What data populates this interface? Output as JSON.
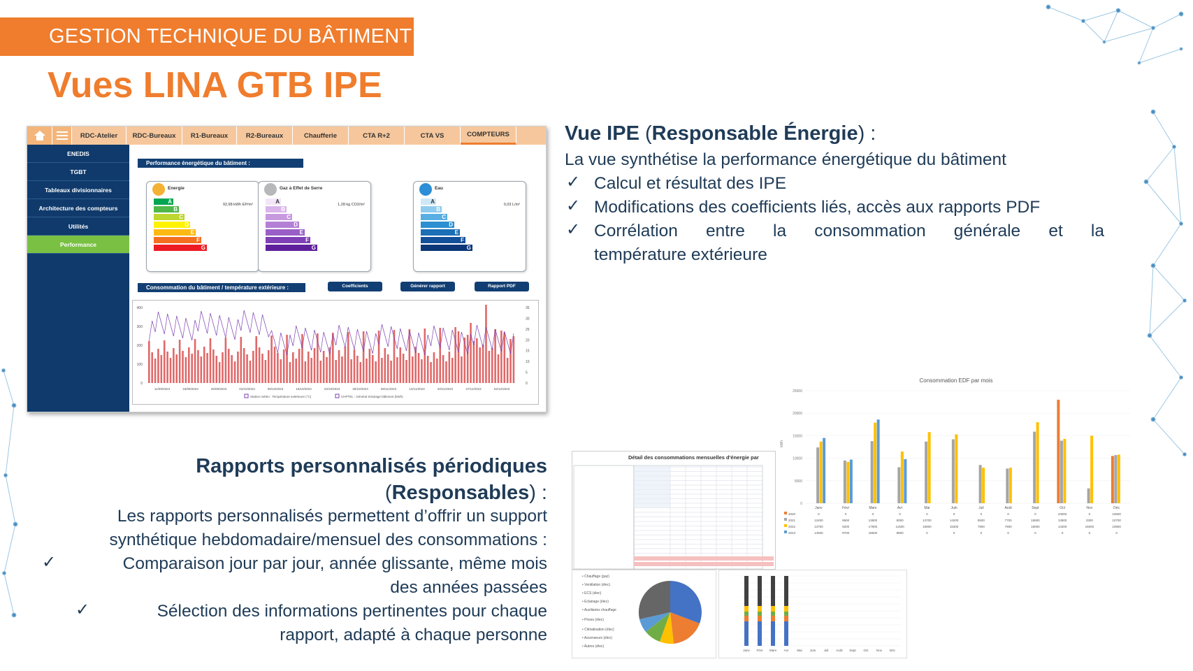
{
  "banner": "GESTION TECHNIQUE DU BÂTIMENT",
  "title": "Vues LINA GTB IPE",
  "colors": {
    "orange": "#ef7d2d",
    "navy": "#1f3b57",
    "gtb_blue": "#0f3a6b",
    "active_green": "#7ac143"
  },
  "gtb": {
    "tabs": [
      "RDC-Atelier",
      "RDC-Bureaux",
      "R1-Bureaux",
      "R2-Bureaux",
      "Chaufferie",
      "CTA R+2",
      "CTA VS",
      "COMPTEURS"
    ],
    "side": [
      "ENEDIS",
      "TGBT",
      "Tableaux divisionnaires",
      "Architecture des compteurs",
      "Utilités",
      "Performance"
    ],
    "perf_header": "Performance énergétique du bâtiment :",
    "cards": [
      {
        "title": "Energie",
        "value": "92,98 kWh EP/m²",
        "icon": "bolt-icon"
      },
      {
        "title": "Gaz à Effet de Serre",
        "value": "1,28 kg CO2/m²",
        "icon": "co2-icon"
      },
      {
        "title": "Eau",
        "value": "0,03 L/m²",
        "icon": "water-drop-icon"
      }
    ],
    "cons_header": "Consommation du bâtiment / température extérieure :",
    "buttons": [
      "Coefficients",
      "Générer rapport",
      "Rapport PDF"
    ],
    "chart_left_ticks": [
      "400",
      "300",
      "200",
      "100",
      "0"
    ],
    "chart_right_ticks": [
      "35",
      "30",
      "25",
      "20",
      "15",
      "10",
      "5",
      "0"
    ],
    "chart_dates": [
      "11/09/2023",
      "18/09/2023",
      "25/09/2023",
      "02/10/2023",
      "09/10/2023",
      "16/10/2023",
      "23/10/2023",
      "30/10/2023",
      "06/11/2023",
      "13/11/2023",
      "20/11/2023",
      "27/11/2023",
      "04/12/2023"
    ],
    "legend": [
      "Station météo : Température extérieure (°C)",
      "CHPTEL : Général éclairage bâtiment (kWh)"
    ]
  },
  "right": {
    "heading_bold1": "Vue IPE",
    "heading_mid": " (",
    "heading_bold2": "Responsable Énergie",
    "heading_end": ") :",
    "intro": "La vue synthétise la performance énergétique du bâtiment",
    "bullets": [
      "Calcul et résultat des IPE",
      "Modifications des coefficients liés, accès aux rapports PDF",
      "Corrélation entre la consommation générale et la",
      "température extérieure"
    ]
  },
  "left": {
    "heading_line1": "Rapports personnalisés périodiques",
    "heading_line2_bold": "Responsables",
    "heading_line2_pre": "(",
    "heading_line2_post": ") :",
    "intro1": "Les rapports personnalisés permettent d’offrir un support",
    "intro2": "synthétique hebdomadaire/mensuel des consommations :",
    "b1_l1": "Comparaison jour par jour, année glissante, même mois",
    "b1_l2": "des années passées",
    "b2_l1": "Sélection des informations pertinentes pour chaque",
    "b2_l2": "rapport, adapté à chaque personne"
  },
  "reports": {
    "edf_title": "Consommation EDF par mois",
    "table_title": "Détail des consommations mensuelles d'énergie par",
    "months": [
      "Janv",
      "Févr",
      "Mars",
      "Avr",
      "Mai",
      "Juin",
      "Juil",
      "Août",
      "Sept",
      "Oct",
      "Nov",
      "Déc"
    ],
    "yticks": [
      "25000",
      "20000",
      "15000",
      "10000",
      "5000",
      "0"
    ],
    "ylabel": "kWh"
  },
  "chart_data": [
    {
      "type": "bar",
      "title": "Consommation EDF par mois",
      "ylabel": "kWh",
      "ylim": [
        0,
        25000
      ],
      "categories": [
        "Janv",
        "Févr",
        "Mars",
        "Avr",
        "Mai",
        "Juin",
        "Juil",
        "Août",
        "Sept",
        "Oct",
        "Nov",
        "Déc"
      ],
      "series": [
        {
          "name": "2020",
          "values": [
            0,
            0,
            0,
            0,
            0,
            0,
            0,
            0,
            0,
            23000,
            0,
            10500
          ]
        },
        {
          "name": "2021",
          "values": [
            12400,
            9500,
            13800,
            8000,
            13700,
            14200,
            8500,
            7700,
            15900,
            13900,
            3300,
            10700
          ]
        },
        {
          "name": "2022",
          "values": [
            13700,
            9200,
            17900,
            11500,
            15800,
            15300,
            7900,
            7900,
            18000,
            14300,
            15000,
            10800
          ]
        },
        {
          "name": "2023",
          "values": [
            14500,
            9700,
            18600,
            9800,
            0,
            0,
            0,
            0,
            0,
            0,
            0,
            0
          ]
        }
      ],
      "colors": {
        "2020": "#ed7d31",
        "2021": "#a5a5a5",
        "2022": "#ffc000",
        "2023": "#5b9bd5"
      }
    }
  ]
}
